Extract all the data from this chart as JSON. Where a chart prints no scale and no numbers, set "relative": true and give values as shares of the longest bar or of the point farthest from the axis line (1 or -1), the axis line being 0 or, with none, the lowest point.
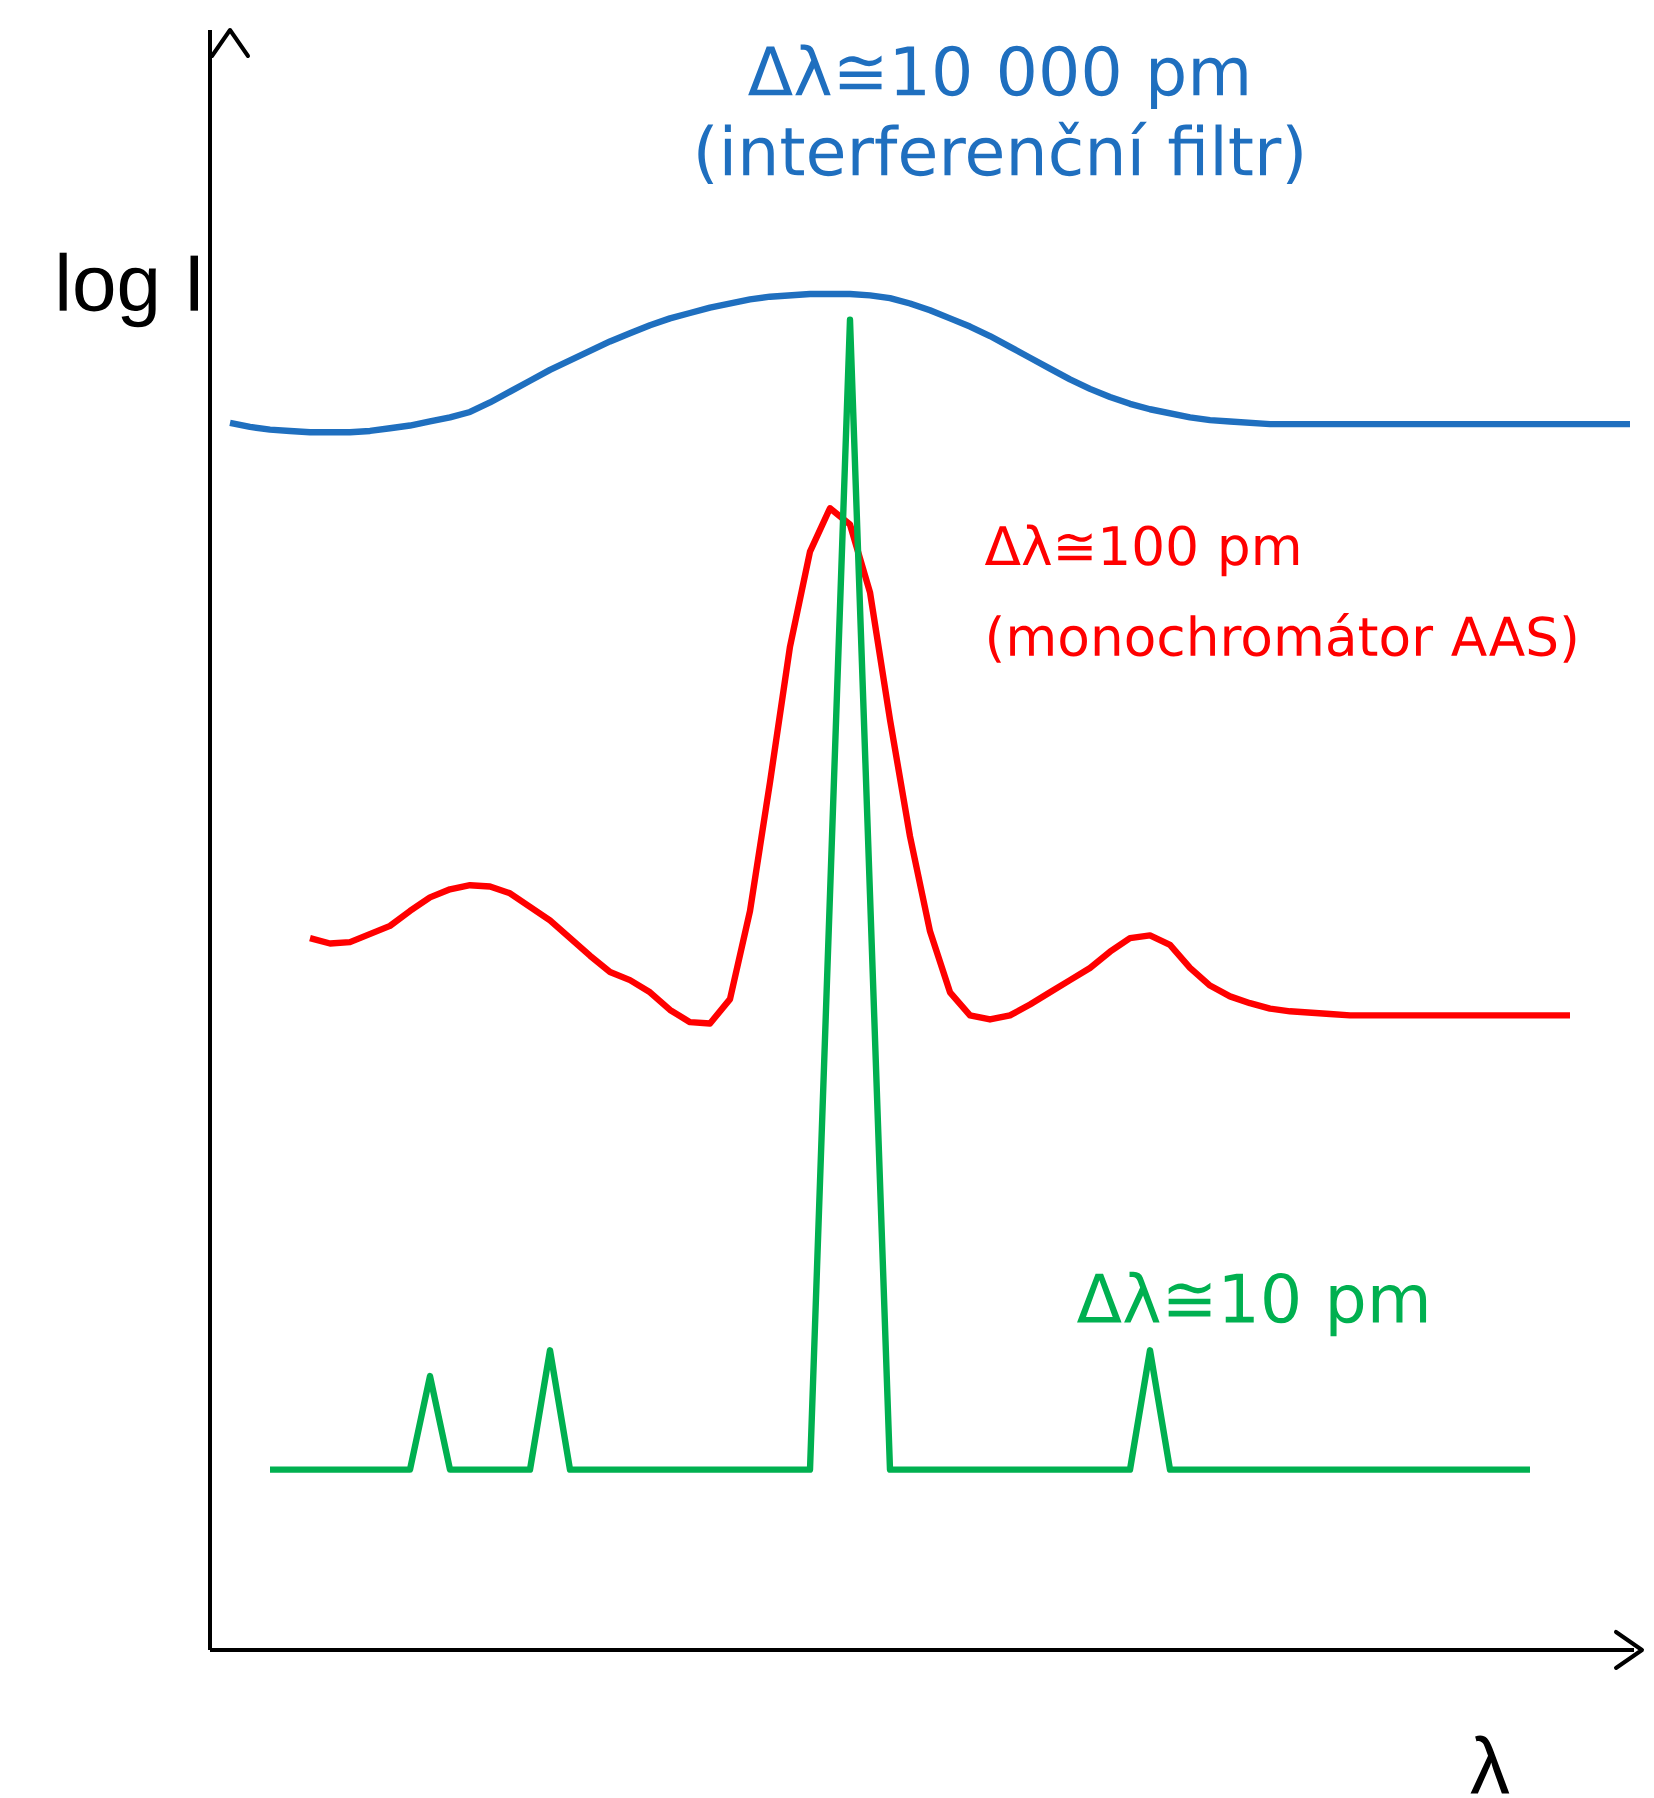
{
  "chart_data": {
    "type": "line",
    "relative": true,
    "xlabel": "λ",
    "ylabel": "log I",
    "legend": false,
    "grid": false,
    "marker": "none",
    "categories": [
      null,
      null,
      null,
      null,
      null,
      null,
      null,
      null,
      null,
      null,
      null,
      null,
      null,
      null,
      null,
      null,
      null,
      null,
      null,
      null,
      null,
      null,
      null,
      null,
      null,
      null,
      null,
      null,
      null,
      null,
      null,
      null,
      null,
      null,
      null,
      null,
      null,
      null,
      null,
      null,
      null,
      null,
      null,
      null,
      null,
      null,
      null,
      null,
      null,
      null,
      null,
      null,
      null,
      null,
      null,
      null,
      null,
      null,
      null,
      null,
      null,
      null,
      null,
      null,
      null,
      null,
      null,
      null,
      null,
      null,
      null
    ],
    "series": [
      {
        "name": "Δλ≅10 000 pm (interferenční filtr)",
        "color": "#1f6fbf",
        "values": [
          0.905,
          0.902,
          0.9,
          0.899,
          0.898,
          0.898,
          0.898,
          0.899,
          0.901,
          0.903,
          0.906,
          0.909,
          0.913,
          0.92,
          0.928,
          0.936,
          0.944,
          0.951,
          0.958,
          0.965,
          0.971,
          0.977,
          0.982,
          0.986,
          0.99,
          0.993,
          0.996,
          0.998,
          0.999,
          1.0,
          1.0,
          1.0,
          0.999,
          0.997,
          0.993,
          0.988,
          0.982,
          0.976,
          0.969,
          0.961,
          0.953,
          0.945,
          0.937,
          0.93,
          0.924,
          0.919,
          0.915,
          0.912,
          0.909,
          0.907,
          0.906,
          0.905,
          0.904,
          0.904,
          0.904,
          0.904,
          0.904,
          0.904,
          0.904,
          0.904,
          0.904,
          0.904,
          0.904,
          0.904,
          0.904,
          0.904,
          0.904,
          0.904,
          0.904,
          0.904,
          0.904
        ]
      },
      {
        "name": "Δλ≅100 pm (monochromátor AAS)",
        "color": "#ff0000",
        "values": [
          null,
          null,
          null,
          null,
          0.525,
          0.521,
          0.522,
          0.528,
          0.534,
          0.545,
          0.555,
          0.561,
          0.564,
          0.563,
          0.558,
          0.548,
          0.538,
          0.525,
          0.512,
          0.5,
          0.494,
          0.485,
          0.472,
          0.463,
          0.462,
          0.48,
          0.545,
          0.64,
          0.74,
          0.81,
          0.842,
          0.83,
          0.78,
          0.686,
          0.6,
          0.53,
          0.485,
          0.468,
          0.465,
          0.468,
          0.476,
          0.485,
          0.494,
          0.503,
          0.515,
          0.525,
          0.527,
          0.52,
          0.503,
          0.49,
          0.482,
          0.477,
          0.473,
          0.471,
          0.47,
          0.469,
          0.468,
          0.468,
          0.468,
          0.468,
          0.468,
          0.468,
          0.468,
          0.468,
          0.468,
          0.468,
          0.468,
          0.468,
          null,
          null,
          null
        ]
      },
      {
        "name": "Δλ≅10 pm",
        "color": "#00b050",
        "values": [
          null,
          null,
          0.133,
          0.133,
          0.133,
          0.133,
          0.133,
          0.133,
          0.133,
          0.133,
          0.202,
          0.133,
          0.133,
          0.133,
          0.133,
          0.133,
          0.221,
          0.133,
          0.133,
          0.133,
          0.133,
          0.133,
          0.133,
          0.133,
          0.133,
          0.133,
          0.133,
          0.133,
          0.133,
          0.133,
          0.557,
          0.981,
          0.557,
          0.133,
          0.133,
          0.133,
          0.133,
          0.133,
          0.133,
          0.133,
          0.133,
          0.133,
          0.133,
          0.133,
          0.133,
          0.133,
          0.221,
          0.133,
          0.133,
          0.133,
          0.133,
          0.133,
          0.133,
          0.133,
          0.133,
          0.133,
          0.133,
          0.133,
          0.133,
          0.133,
          0.133,
          0.133,
          0.133,
          0.133,
          0.133,
          0.133,
          null,
          null,
          null,
          null,
          null
        ]
      }
    ]
  }
}
